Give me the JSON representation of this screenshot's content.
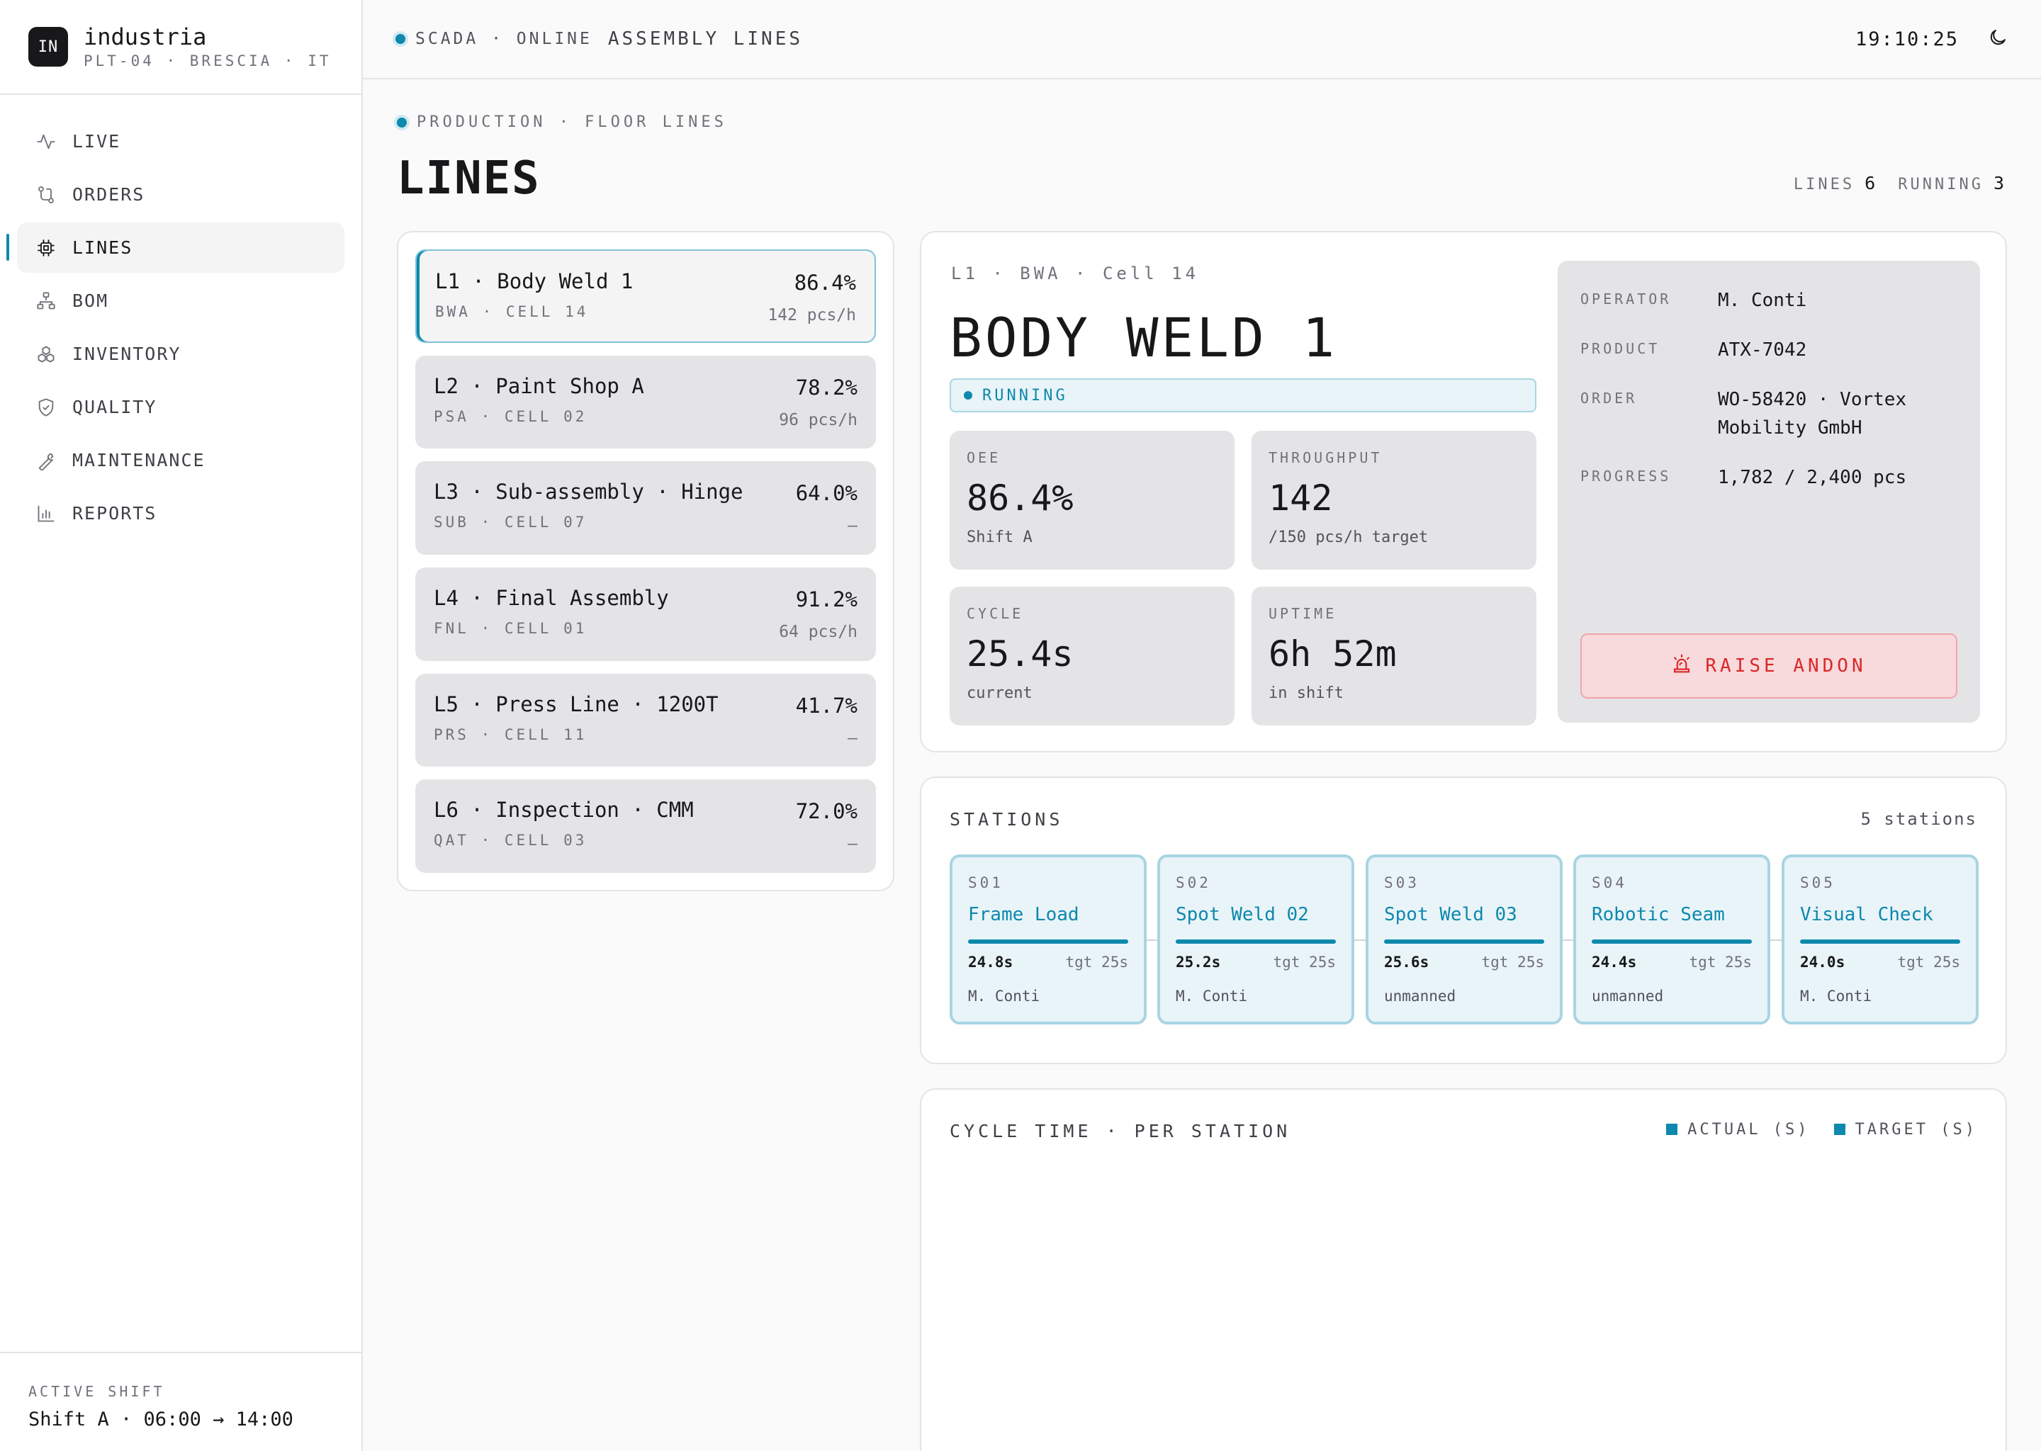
{
  "brand": {
    "logo": "IN",
    "name": "industria",
    "sub": "PLT-04 · BRESCIA · IT"
  },
  "nav": [
    {
      "label": "LIVE",
      "icon": "activity-icon"
    },
    {
      "label": "ORDERS",
      "icon": "route-icon"
    },
    {
      "label": "LINES",
      "icon": "chip-icon",
      "active": true
    },
    {
      "label": "BOM",
      "icon": "hierarchy-icon"
    },
    {
      "label": "INVENTORY",
      "icon": "boxes-icon"
    },
    {
      "label": "QUALITY",
      "icon": "shield-check-icon"
    },
    {
      "label": "MAINTENANCE",
      "icon": "wrench-icon"
    },
    {
      "label": "REPORTS",
      "icon": "bar-chart-icon"
    }
  ],
  "shift": {
    "label": "ACTIVE SHIFT",
    "value": "Shift A · 06:00 → 14:00"
  },
  "topbar": {
    "status": "SCADA · ONLINE",
    "title": "ASSEMBLY LINES",
    "clock": "19:10:25",
    "theme_icon": "moon-icon"
  },
  "page": {
    "crumb": "PRODUCTION · FLOOR LINES",
    "title": "LINES",
    "lines_label": "LINES",
    "lines_count": "6",
    "running_label": "RUNNING",
    "running_count": "3"
  },
  "lines": [
    {
      "name": "L1 · Body Weld 1",
      "code": "BWA · CELL 14",
      "pct": "86.4%",
      "rate": "142 pcs/h",
      "selected": true
    },
    {
      "name": "L2 · Paint Shop A",
      "code": "PSA · CELL 02",
      "pct": "78.2%",
      "rate": "96 pcs/h"
    },
    {
      "name": "L3 · Sub-assembly · Hinge",
      "code": "SUB · CELL 07",
      "pct": "64.0%",
      "rate": "—"
    },
    {
      "name": "L4 · Final Assembly",
      "code": "FNL · CELL 01",
      "pct": "91.2%",
      "rate": "64 pcs/h"
    },
    {
      "name": "L5 · Press Line · 1200T",
      "code": "PRS · CELL 11",
      "pct": "41.7%",
      "rate": "—"
    },
    {
      "name": "L6 · Inspection · CMM",
      "code": "QAT · CELL 03",
      "pct": "72.0%",
      "rate": "—"
    }
  ],
  "detail": {
    "crumb": "L1 · BWA · Cell 14",
    "title": "BODY WELD 1",
    "status": "RUNNING",
    "kpis": [
      {
        "label": "OEE",
        "value": "86.4%",
        "sub": "Shift A"
      },
      {
        "label": "THROUGHPUT",
        "value": "142",
        "sub": "/150 pcs/h target"
      },
      {
        "label": "CYCLE",
        "value": "25.4s",
        "sub": "current"
      },
      {
        "label": "UPTIME",
        "value": "6h 52m",
        "sub": "in shift"
      }
    ],
    "info": [
      {
        "key": "OPERATOR",
        "value": "M. Conti"
      },
      {
        "key": "PRODUCT",
        "value": "ATX-7042"
      },
      {
        "key": "ORDER",
        "value": "WO-58420 · Vortex Mobility GmbH"
      },
      {
        "key": "PROGRESS",
        "value": "1,782 / 2,400 pcs"
      }
    ],
    "andon_label": "RAISE ANDON"
  },
  "stations": {
    "title": "STATIONS",
    "count": "5 stations",
    "items": [
      {
        "id": "S01",
        "name": "Frame Load",
        "actual": "24.8s",
        "target": "tgt 25s",
        "operator": "M. Conti"
      },
      {
        "id": "S02",
        "name": "Spot Weld 02",
        "actual": "25.2s",
        "target": "tgt 25s",
        "operator": "M. Conti"
      },
      {
        "id": "S03",
        "name": "Spot Weld 03",
        "actual": "25.6s",
        "target": "tgt 25s",
        "operator": "unmanned"
      },
      {
        "id": "S04",
        "name": "Robotic Seam",
        "actual": "24.4s",
        "target": "tgt 25s",
        "operator": "unmanned"
      },
      {
        "id": "S05",
        "name": "Visual Check",
        "actual": "24.0s",
        "target": "tgt 25s",
        "operator": "M. Conti"
      }
    ]
  },
  "cycle": {
    "title": "CYCLE TIME · PER STATION",
    "legend_actual": "ACTUAL (S)",
    "legend_target": "TARGET (S)"
  },
  "colors": {
    "accent": "#0e88ad",
    "danger": "#dc2626"
  }
}
